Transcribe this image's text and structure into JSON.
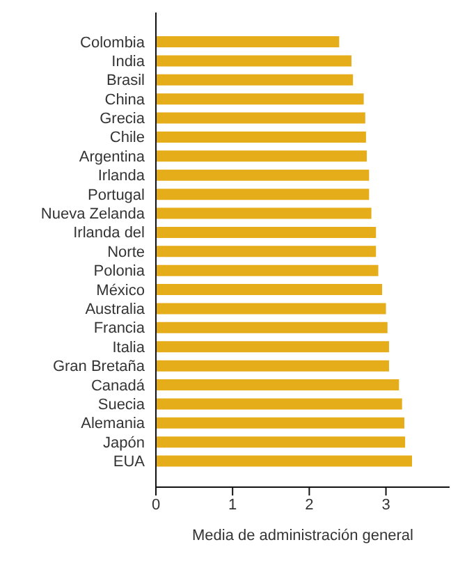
{
  "chart_data": {
    "type": "bar",
    "orientation": "horizontal",
    "xlabel": "Media de administración general",
    "categories": [
      "Colombia",
      "India",
      "Brasil",
      "China",
      "Grecia",
      "Chile",
      "Argentina",
      "Irlanda",
      "Portugal",
      "Nueva Zelanda",
      "Irlanda del",
      "Norte",
      "Polonia",
      "México",
      "Australia",
      "Francia",
      "Italia",
      "Gran Bretaña",
      "Canadá",
      "Suecia",
      "Alemania",
      "Japón",
      "EUA"
    ],
    "values": [
      2.39,
      2.55,
      2.57,
      2.71,
      2.73,
      2.74,
      2.75,
      2.78,
      2.78,
      2.81,
      2.87,
      2.87,
      2.9,
      2.95,
      3.0,
      3.02,
      3.04,
      3.04,
      3.17,
      3.21,
      3.24,
      3.25,
      3.34
    ],
    "color": "#e6ad1a",
    "xlim": [
      0,
      3.83
    ],
    "xticks": [
      0,
      1,
      2,
      3
    ],
    "grid": false,
    "legend": false
  }
}
